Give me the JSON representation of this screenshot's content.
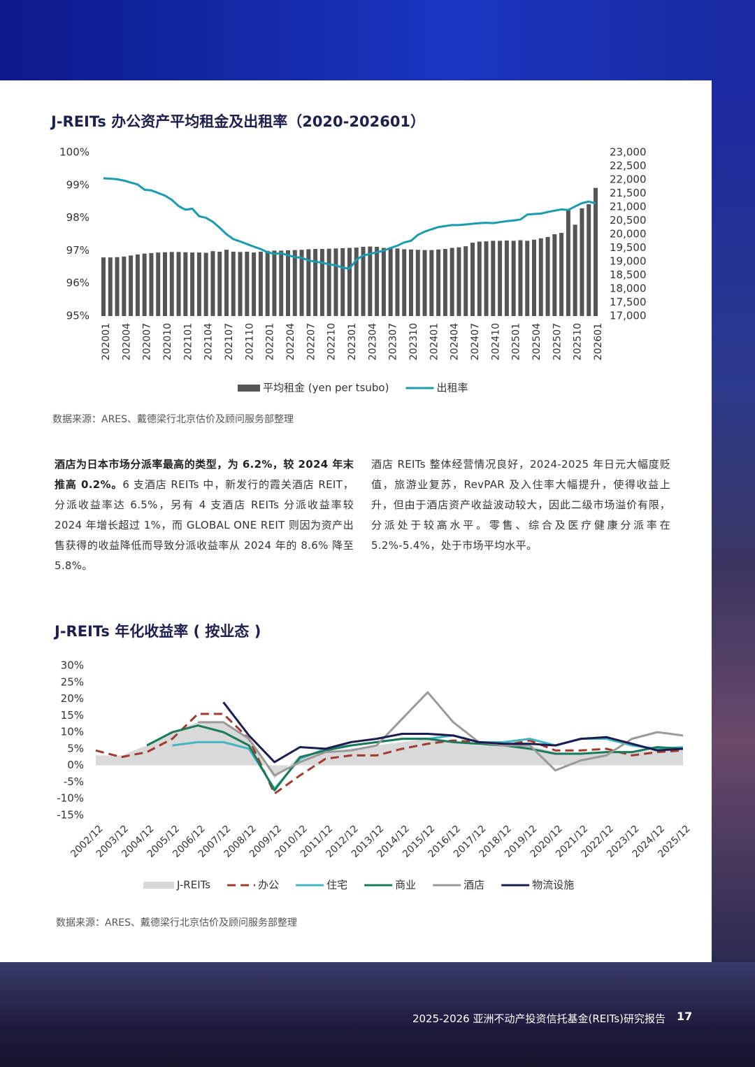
{
  "chart_data": [
    {
      "type": "bar",
      "title": "J-REITs 办公资产平均租金及出租率（2020-202601）",
      "note": "数据来源：ARES、戴德梁行北京估价及顾问服务部整理",
      "categories": [
        "202001",
        null,
        null,
        "202004",
        null,
        null,
        "202007",
        null,
        null,
        "202010",
        null,
        null,
        "202101",
        null,
        null,
        "202104",
        null,
        null,
        "202107",
        null,
        null,
        "202110",
        null,
        null,
        "202201",
        null,
        null,
        "202204",
        null,
        null,
        "202207",
        null,
        null,
        "202210",
        null,
        null,
        "202301",
        null,
        null,
        "202304",
        null,
        null,
        "202307",
        null,
        null,
        "202310",
        null,
        null,
        "202401",
        null,
        null,
        "202404",
        null,
        null,
        "202407",
        null,
        null,
        "202410",
        null,
        null,
        "202501",
        null,
        null,
        "202504",
        null,
        null,
        "202507",
        null,
        null,
        "202510",
        null,
        null,
        "202601"
      ],
      "series": [
        {
          "name": "平均租金 (yen per tsubo)",
          "type": "bar",
          "axis": "y2",
          "color": "#555555",
          "values": [
            19150,
            19150,
            19160,
            19180,
            19220,
            19260,
            19290,
            19310,
            19330,
            19340,
            19350,
            19350,
            19340,
            19330,
            19330,
            19320,
            19380,
            19360,
            19430,
            19360,
            19350,
            19360,
            19330,
            19360,
            19390,
            19400,
            19400,
            19410,
            19420,
            19430,
            19450,
            19460,
            19460,
            19470,
            19480,
            19490,
            19500,
            19510,
            19540,
            19550,
            19540,
            19500,
            19480,
            19480,
            19450,
            19440,
            19430,
            19420,
            19420,
            19440,
            19460,
            19500,
            19520,
            19560,
            19690,
            19730,
            19740,
            19760,
            19760,
            19770,
            19760,
            19780,
            19760,
            19800,
            19850,
            19900,
            20000,
            20050,
            20900,
            20350,
            20950,
            21100,
            21700
          ]
        },
        {
          "name": "出租率",
          "type": "line",
          "color": "#1a9bb0",
          "values": [
            99.21,
            99.2,
            99.18,
            99.14,
            99.08,
            99.02,
            98.86,
            98.84,
            98.76,
            98.68,
            98.55,
            98.36,
            98.25,
            98.28,
            98.05,
            98.0,
            97.88,
            97.7,
            97.5,
            97.35,
            97.28,
            97.2,
            97.12,
            97.05,
            96.95,
            96.9,
            96.92,
            96.86,
            96.8,
            96.78,
            96.7,
            96.66,
            96.63,
            96.58,
            96.55,
            96.48,
            96.45,
            96.72,
            96.85,
            96.9,
            96.95,
            97.0,
            97.08,
            97.15,
            97.25,
            97.3,
            97.48,
            97.58,
            97.65,
            97.72,
            97.75,
            97.78,
            97.78,
            97.8,
            97.82,
            97.84,
            97.85,
            97.84,
            97.87,
            97.9,
            97.92,
            97.95,
            98.1,
            98.12,
            98.13,
            98.18,
            98.22,
            98.26,
            98.24,
            98.35,
            98.45,
            98.5,
            98.44
          ]
        }
      ],
      "ylim": [
        95,
        100
      ],
      "yticks": [
        {
          "value": 95,
          "label": "95%"
        },
        {
          "value": 96,
          "label": "96%"
        },
        {
          "value": 97,
          "label": "97%"
        },
        {
          "value": 98,
          "label": "98%"
        },
        {
          "value": 99,
          "label": "99%"
        },
        {
          "value": 100,
          "label": "100%"
        }
      ],
      "y2lim": [
        17000,
        23000
      ],
      "y2ticks": [
        {
          "value": 17000,
          "label": "17,000"
        },
        {
          "value": 17500,
          "label": "17,500"
        },
        {
          "value": 18000,
          "label": "18,000"
        },
        {
          "value": 18500,
          "label": "18,500"
        },
        {
          "value": 19000,
          "label": "19,000"
        },
        {
          "value": 19500,
          "label": "19,500"
        },
        {
          "value": 20000,
          "label": "20,000"
        },
        {
          "value": 20500,
          "label": "20,500"
        },
        {
          "value": 21000,
          "label": "21,000"
        },
        {
          "value": 21500,
          "label": "21,500"
        },
        {
          "value": 22000,
          "label": "22,000"
        },
        {
          "value": 22500,
          "label": "22,500"
        },
        {
          "value": 23000,
          "label": "23,000"
        }
      ],
      "grid": false,
      "legend": "bottom"
    },
    {
      "type": "line",
      "title": "J-REITs 年化收益率 ( 按业态 )",
      "note": "数据来源：ARES、戴德梁行北京估价及顾问服务部整理",
      "categories": [
        "2002/12",
        "2003/12",
        "2004/12",
        "2005/12",
        "2006/12",
        "2007/12",
        "2008/12",
        "2009/12",
        "2010/12",
        "2011/12",
        "2012/12",
        "2013/12",
        "2014/12",
        "2015/12",
        "2016/12",
        "2017/12",
        "2018/12",
        "2019/12",
        "2020/12",
        "2021/12",
        "2022/12",
        "2023/12",
        "2024/12",
        "2025/12"
      ],
      "series": [
        {
          "name": "J-REITs",
          "type": "area",
          "color": "#d9d9d9",
          "values": [
            3,
            3,
            6,
            10,
            13,
            13,
            8,
            -4,
            3,
            4,
            5,
            6,
            7,
            8,
            7,
            6,
            6,
            6,
            4,
            4,
            4,
            4,
            4.5,
            5
          ]
        },
        {
          "name": "办公",
          "type": "line",
          "line_style": "dashed",
          "color": "#a23b2f",
          "values": [
            4.5,
            2.5,
            4,
            8,
            15.5,
            15.5,
            8,
            -8.5,
            -3,
            2,
            3,
            3,
            5,
            6.5,
            7.5,
            7,
            6,
            7.5,
            4.5,
            4.5,
            5,
            3,
            4,
            4.5
          ]
        },
        {
          "name": "住宅",
          "type": "line",
          "color": "#44b5c4",
          "values": [
            null,
            null,
            null,
            6,
            7,
            7,
            5,
            -7,
            2,
            5,
            6,
            7,
            8,
            8,
            9,
            7,
            7,
            8,
            6,
            8,
            8,
            6,
            5,
            5.5
          ]
        },
        {
          "name": "商业",
          "type": "line",
          "color": "#1a7a5a",
          "values": [
            null,
            null,
            6,
            10,
            12,
            10,
            6,
            -7.5,
            2.5,
            4.5,
            6,
            7,
            8,
            8,
            7,
            6.5,
            6,
            5,
            3.5,
            3.5,
            4,
            4,
            5.5,
            5
          ]
        },
        {
          "name": "酒店",
          "type": "line",
          "color": "#9a9a9a",
          "values": [
            null,
            null,
            null,
            null,
            13,
            13,
            8,
            -3,
            1,
            4,
            4.5,
            6,
            14,
            22,
            13,
            7,
            6,
            6,
            -1.5,
            1.5,
            3,
            8,
            10,
            9
          ]
        },
        {
          "name": "物流设施",
          "type": "line",
          "color": "#1c1d4f",
          "values": [
            null,
            null,
            null,
            null,
            null,
            19,
            9,
            1,
            5.5,
            5,
            7,
            8,
            9.5,
            9.5,
            9,
            7,
            6.5,
            6.5,
            6,
            8,
            8.5,
            6.5,
            4.5,
            5
          ]
        }
      ],
      "ylim": [
        -15,
        30
      ],
      "yticks": [
        {
          "value": -15,
          "label": "-15%"
        },
        {
          "value": -10,
          "label": "-10%"
        },
        {
          "value": -5,
          "label": "-5%"
        },
        {
          "value": 0,
          "label": "0%"
        },
        {
          "value": 5,
          "label": "5%"
        },
        {
          "value": 10,
          "label": "10%"
        },
        {
          "value": 15,
          "label": "15%"
        },
        {
          "value": 20,
          "label": "20%"
        },
        {
          "value": 25,
          "label": "25%"
        },
        {
          "value": 30,
          "label": "30%"
        }
      ],
      "grid": false,
      "legend": "bottom"
    }
  ],
  "body": {
    "left": {
      "bold": "酒店为日本市场分派率最高的类型，为 6.2%，较 2024 年末推高 0.2%。",
      "text": "6 支酒店 REITs 中，新发行的霞关酒店 REIT，分派收益率达 6.5%，另有 4 支酒店 REITs 分派收益率较 2024 年增长超过 1%，而 GLOBAL ONE REIT 则因为资产出售获得的收益降低而导致分派收益率从 2024 年的 8.6% 降至 5.8%。"
    },
    "right": "酒店 REITs 整体经营情况良好，2024-2025 年日元大幅度贬值，旅游业复苏，RevPAR 及入住率大幅提升，使得收益上升，但由于酒店资产收益波动较大，因此二级市场溢价有限，分派处于较高水平。零售、综合及医疗健康分派率在 5.2%-5.4%，处于市场平均水平。"
  },
  "footer": {
    "report": "2025-2026 亚洲不动产投资信托基金(REITs)研究报告",
    "page": "17"
  }
}
